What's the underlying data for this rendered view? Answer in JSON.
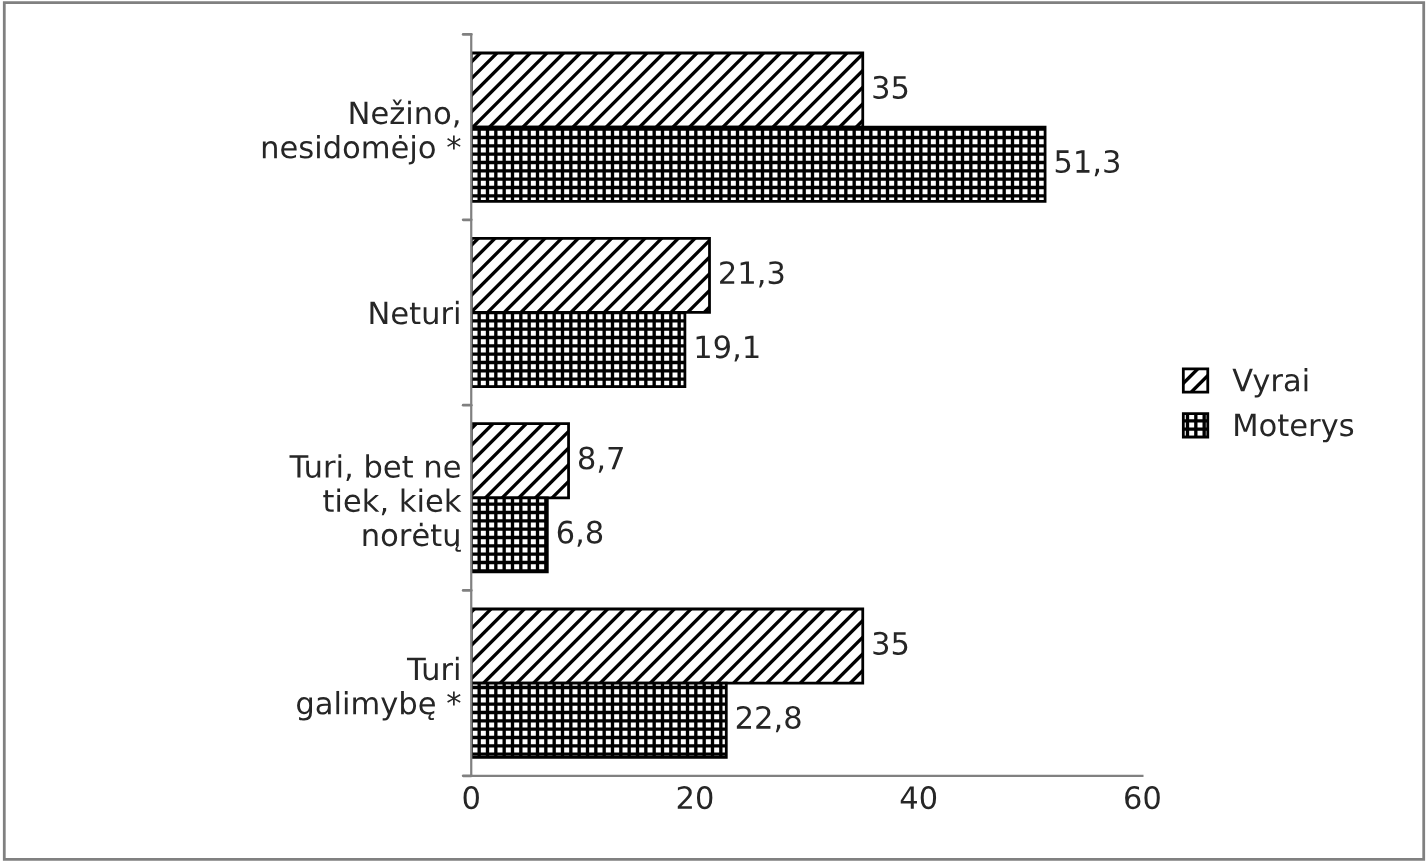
{
  "chart_data": {
    "type": "bar",
    "orientation": "horizontal",
    "categories": [
      "Nežino,\nnesidomėjo *",
      "Neturi",
      "Turi, bet ne\ntiek, kiek\nnorėtų",
      "Turi\ngalimybę *"
    ],
    "series": [
      {
        "name": "Vyrai",
        "color": "#000000",
        "values": [
          35,
          21.3,
          8.7,
          35
        ],
        "value_labels": [
          "35",
          "21,3",
          "8,7",
          "35"
        ]
      },
      {
        "name": "Moterys",
        "color": "#000000",
        "values": [
          51.3,
          19.1,
          6.8,
          22.8
        ],
        "value_labels": [
          "51,3",
          "19,1",
          "6,8",
          "22,8"
        ]
      }
    ],
    "xlim": [
      0,
      60
    ],
    "xticks": [
      0,
      20,
      40,
      60
    ],
    "grid": false,
    "legend": "right"
  }
}
